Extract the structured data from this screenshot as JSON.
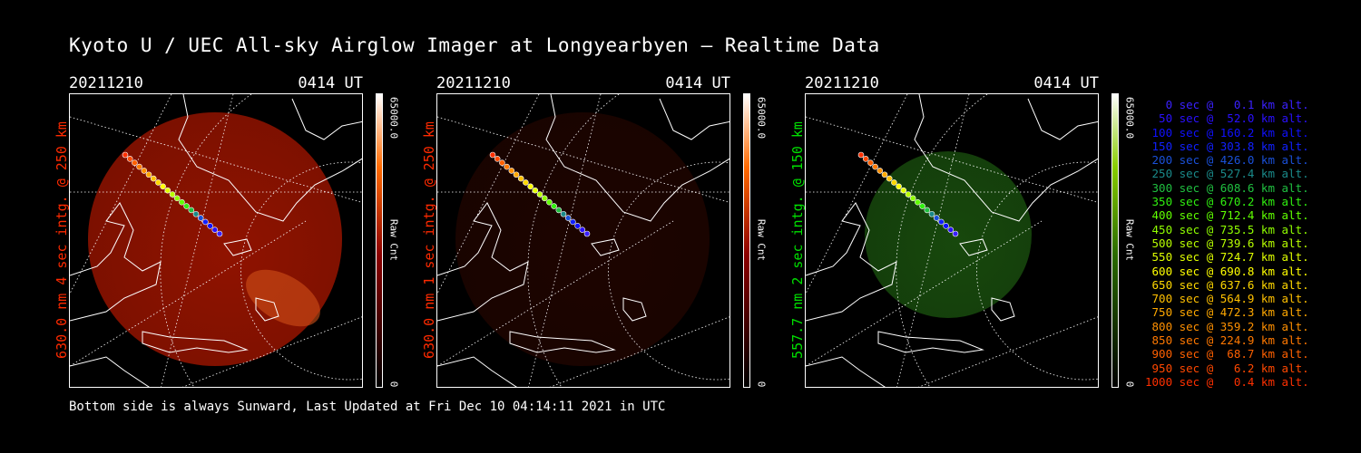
{
  "title": "Kyoto U / UEC All-sky Airglow Imager at Longyearbyen — Realtime Data",
  "panels": [
    {
      "date": "20211210",
      "time": "0414 UT",
      "label": "630.0 nm 4 sec intg. @ 250 km",
      "label_color": "#ff2a00",
      "colorbar": {
        "max": "65000.0",
        "unit": "Raw Cnt",
        "min": "0",
        "colors": [
          "#000000",
          "#8b0000",
          "#ff6a00",
          "#ffffff"
        ]
      },
      "glow": "#a01500",
      "intensity": 0.9
    },
    {
      "date": "20211210",
      "time": "0414 UT",
      "label": "630.0 nm 1 sec intg. @ 250 km",
      "label_color": "#ff2a00",
      "colorbar": {
        "max": "65000.0",
        "unit": "Raw Cnt",
        "min": "0",
        "colors": [
          "#000000",
          "#8b0000",
          "#ff6a00",
          "#ffffff"
        ]
      },
      "glow": "#3a0800",
      "intensity": 0.5
    },
    {
      "date": "20211210",
      "time": "0414 UT",
      "label": "557.7 nm 2 sec intg. @ 150 km",
      "label_color": "#00e000",
      "colorbar": {
        "max": "65000.0",
        "unit": "Raw Cnt",
        "min": "0",
        "colors": [
          "#000000",
          "#2a6a00",
          "#88cc00",
          "#ffffff"
        ]
      },
      "glow": "#1d5a10",
      "intensity": 0.8
    }
  ],
  "footer": "Bottom side is always Sunward, Last Updated at Fri Dec 10 04:14:11 2021 in UTC",
  "legend": [
    {
      "text": "   0 sec @   0.1 km alt.",
      "color": "#3a20ff"
    },
    {
      "text": "  50 sec @  52.0 km alt.",
      "color": "#2a10ff"
    },
    {
      "text": " 100 sec @ 160.2 km alt.",
      "color": "#1010ff"
    },
    {
      "text": " 150 sec @ 303.8 km alt.",
      "color": "#1020ff"
    },
    {
      "text": " 200 sec @ 426.0 km alt.",
      "color": "#1a50d8"
    },
    {
      "text": " 250 sec @ 527.4 km alt.",
      "color": "#1a8a8a"
    },
    {
      "text": " 300 sec @ 608.6 km alt.",
      "color": "#20c040"
    },
    {
      "text": " 350 sec @ 670.2 km alt.",
      "color": "#30f010"
    },
    {
      "text": " 400 sec @ 712.4 km alt.",
      "color": "#60ff00"
    },
    {
      "text": " 450 sec @ 735.5 km alt.",
      "color": "#90ff00"
    },
    {
      "text": " 500 sec @ 739.6 km alt.",
      "color": "#b8ff00"
    },
    {
      "text": " 550 sec @ 724.7 km alt.",
      "color": "#e0ff00"
    },
    {
      "text": " 600 sec @ 690.8 km alt.",
      "color": "#ffff00"
    },
    {
      "text": " 650 sec @ 637.6 km alt.",
      "color": "#ffd800"
    },
    {
      "text": " 700 sec @ 564.9 km alt.",
      "color": "#ffc000"
    },
    {
      "text": " 750 sec @ 472.3 km alt.",
      "color": "#ffa800"
    },
    {
      "text": " 800 sec @ 359.2 km alt.",
      "color": "#ff9000"
    },
    {
      "text": " 850 sec @ 224.9 km alt.",
      "color": "#ff7800"
    },
    {
      "text": " 900 sec @  68.7 km alt.",
      "color": "#ff6000"
    },
    {
      "text": " 950 sec @   6.2 km alt.",
      "color": "#ff4800"
    },
    {
      "text": "1000 sec @   0.4 km alt.",
      "color": "#ff3000"
    }
  ]
}
